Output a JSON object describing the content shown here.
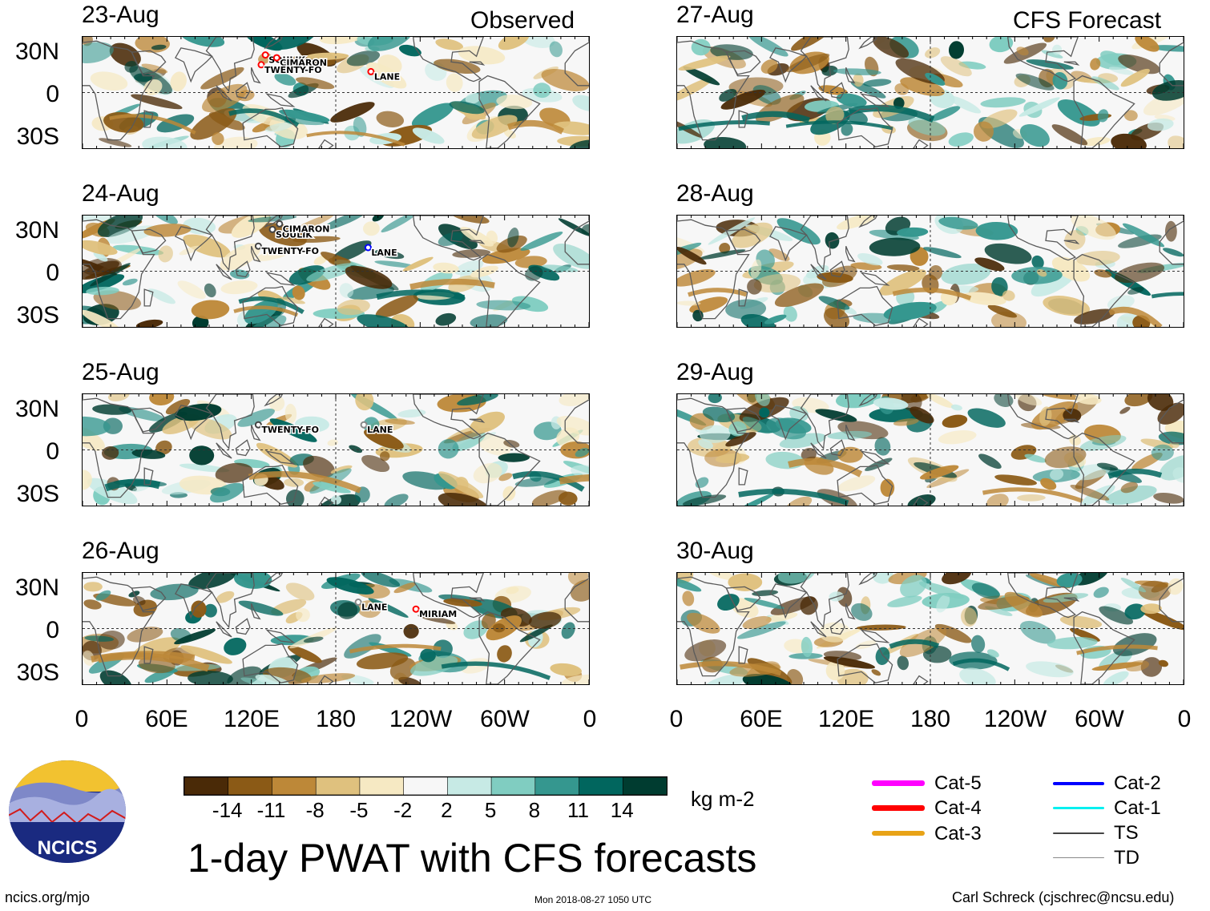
{
  "headers": {
    "observed": "Observed",
    "forecast": "CFS Forecast"
  },
  "lat_labels": [
    "30N",
    "0",
    "30S"
  ],
  "lon_labels": [
    "0",
    "60E",
    "120E",
    "180",
    "120W",
    "60W",
    "0"
  ],
  "chart_data": {
    "type": "heatmap",
    "title": "1-day PWAT with CFS forecasts",
    "variable": "Precipitable water anomaly",
    "units": "kg m-2",
    "grid": "equator and dateline dashed",
    "colorbar": {
      "levels": [
        "-14",
        "-11",
        "-8",
        "-5",
        "-2",
        "2",
        "5",
        "8",
        "11",
        "14"
      ],
      "colors": [
        "#4a2a07",
        "#8b5a16",
        "#bd8838",
        "#dfc17e",
        "#f6e9c3",
        "#f7f7f7",
        "#c7eae5",
        "#80cdc1",
        "#35978f",
        "#01665e",
        "#003c30"
      ]
    },
    "observed": [
      {
        "date": "23-Aug",
        "storms": [
          {
            "name": "SOULIK",
            "lon": 130,
            "lat": 27,
            "category": "Cat-4"
          },
          {
            "name": "CIMARON",
            "lon": 138,
            "lat": 25,
            "category": "Cat-4"
          },
          {
            "name": "TWENTY-FO",
            "lon": 127,
            "lat": 20,
            "category": "Cat-4"
          },
          {
            "name": "LANE",
            "lon": 205,
            "lat": 15,
            "category": "Cat-4"
          }
        ]
      },
      {
        "date": "24-Aug",
        "storms": [
          {
            "name": "SOULIK",
            "lon": 135,
            "lat": 30,
            "category": "TS"
          },
          {
            "name": "CIMARON",
            "lon": 140,
            "lat": 34,
            "category": "TS"
          },
          {
            "name": "TWENTY-FO",
            "lon": 125,
            "lat": 18,
            "category": "TS"
          },
          {
            "name": "LANE",
            "lon": 203,
            "lat": 17,
            "category": "Cat-2"
          }
        ]
      },
      {
        "date": "25-Aug",
        "storms": [
          {
            "name": "TWENTY-FO",
            "lon": 125,
            "lat": 18,
            "category": "TS"
          },
          {
            "name": "LANE",
            "lon": 200,
            "lat": 18,
            "category": "TD"
          }
        ]
      },
      {
        "date": "26-Aug",
        "storms": [
          {
            "name": "LANE",
            "lon": 196,
            "lat": 19,
            "category": "TD"
          },
          {
            "name": "MIRIAM",
            "lon": 237,
            "lat": 14,
            "category": "Cat-4"
          }
        ]
      }
    ],
    "forecast": [
      {
        "date": "27-Aug"
      },
      {
        "date": "28-Aug"
      },
      {
        "date": "29-Aug"
      },
      {
        "date": "30-Aug"
      }
    ],
    "xlim": [
      0,
      360
    ],
    "ylim": [
      -40,
      40
    ]
  },
  "legend": {
    "items": [
      {
        "label": "Cat-5",
        "color": "#ff00ff",
        "width": 7
      },
      {
        "label": "Cat-4",
        "color": "#ff0000",
        "width": 7
      },
      {
        "label": "Cat-3",
        "color": "#e8a317",
        "width": 6
      },
      {
        "label": "Cat-2",
        "color": "#0000ff",
        "width": 4
      },
      {
        "label": "Cat-1",
        "color": "#00f0f0",
        "width": 3
      },
      {
        "label": "TS",
        "color": "#444444",
        "width": 2
      },
      {
        "label": "TD",
        "color": "#888888",
        "width": 1
      }
    ]
  },
  "logo_text": "NCICS",
  "footer": {
    "left": "ncics.org/mjo",
    "center": "Mon 2018-08-27 1050 UTC",
    "right": "Carl Schreck (cjschrec@ncsu.edu)"
  }
}
